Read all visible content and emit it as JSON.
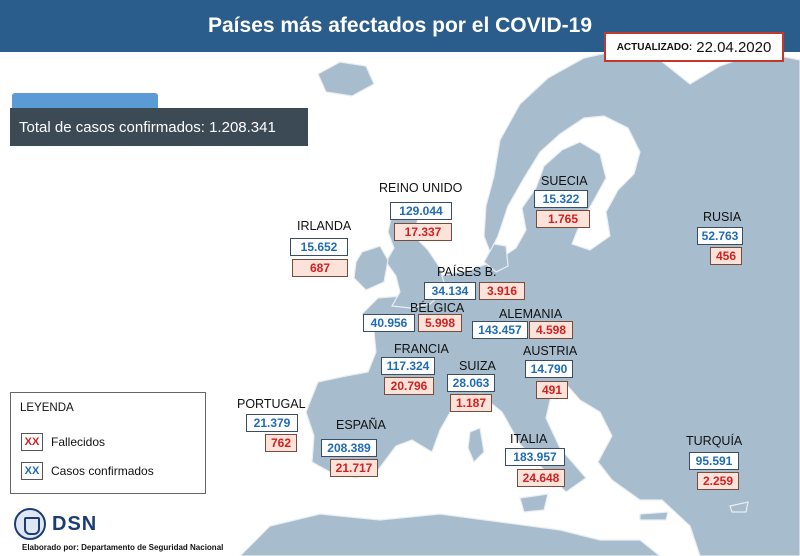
{
  "header": {
    "title": "Países más afectados por el COVID-19"
  },
  "updated": {
    "label": "ACTUALIZADO:",
    "date": "22.04.2020"
  },
  "summary": {
    "total": "Total de casos confirmados: 1.208.341"
  },
  "countries": {
    "reino_unido": {
      "name": "REINO UNIDO",
      "confirmed": "129.044",
      "deaths": "17.337"
    },
    "irlanda": {
      "name": "IRLANDA",
      "confirmed": "15.652",
      "deaths": "687"
    },
    "suecia": {
      "name": "SUECIA",
      "confirmed": "15.322",
      "deaths": "1.765"
    },
    "rusia": {
      "name": "RUSIA",
      "confirmed": "52.763",
      "deaths": "456"
    },
    "paises_b": {
      "name": "PAÍSES B.",
      "confirmed": "34.134",
      "deaths": "3.916"
    },
    "belgica": {
      "name": "BÉLGICA",
      "confirmed": "40.956",
      "deaths": "5.998"
    },
    "alemania": {
      "name": "ALEMANIA",
      "confirmed": "143.457",
      "deaths": "4.598"
    },
    "francia": {
      "name": "FRANCIA",
      "confirmed": "117.324",
      "deaths": "20.796"
    },
    "suiza": {
      "name": "SUIZA",
      "confirmed": "28.063",
      "deaths": "1.187"
    },
    "austria": {
      "name": "AUSTRIA",
      "confirmed": "14.790",
      "deaths": "491"
    },
    "portugal": {
      "name": "PORTUGAL",
      "confirmed": "21.379",
      "deaths": "762"
    },
    "espana": {
      "name": "ESPAÑA",
      "confirmed": "208.389",
      "deaths": "21.717"
    },
    "italia": {
      "name": "ITALIA",
      "confirmed": "183.957",
      "deaths": "24.648"
    },
    "turquia": {
      "name": "TURQUÍA",
      "confirmed": "95.591",
      "deaths": "2.259"
    }
  },
  "legend": {
    "title": "LEYENDA",
    "deaths_key": "XX",
    "deaths_label": "Fallecidos",
    "confirmed_key": "XX",
    "confirmed_label": "Casos confirmados"
  },
  "footer": {
    "logo": "DSN",
    "credit": "Elaborado por: Departamento de Seguridad Nacional"
  },
  "colors": {
    "title_bar": "#2a5d8c",
    "land": "#a7bccd",
    "sea": "#ffffff",
    "confirmed": "#1f6bb5",
    "deaths": "#d21f1f",
    "deaths_box": "#fbe3da"
  }
}
